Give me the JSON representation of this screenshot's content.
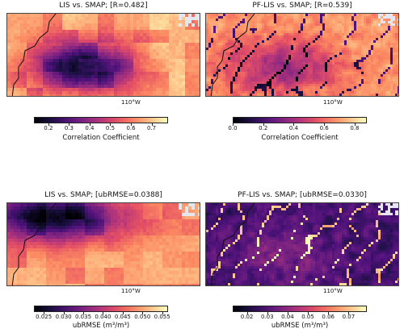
{
  "panels": [
    {
      "title": "LIS vs. SMAP; [R=0.482]",
      "lon_label": "110°W",
      "cbar_label": "Correlation Coefficient",
      "ticks": [
        "0.2",
        "0.3",
        "0.4",
        "0.5",
        "0.6",
        "0.7"
      ],
      "tick_values": [
        0.2,
        0.3,
        0.4,
        0.5,
        0.6,
        0.7
      ],
      "vmin": 0.13,
      "vmax": 0.78,
      "style": "coarse-corr"
    },
    {
      "title": "PF-LIS vs. SMAP; [R=0.539]",
      "lon_label": "110°W",
      "cbar_label": "Correlation Coefficient",
      "ticks": [
        "0.0",
        "0.2",
        "0.4",
        "0.6",
        "0.8"
      ],
      "tick_values": [
        0.0,
        0.2,
        0.4,
        0.6,
        0.8
      ],
      "vmin": 0.0,
      "vmax": 0.88,
      "style": "fine-corr"
    },
    {
      "title": "LIS vs. SMAP; [ubRMSE=0.0388]",
      "lon_label": "110°W",
      "cbar_label": "ubRMSE (m³/m³)",
      "ticks": [
        "0.025",
        "0.030",
        "0.035",
        "0.040",
        "0.045",
        "0.050",
        "0.055"
      ],
      "tick_values": [
        0.025,
        0.03,
        0.035,
        0.04,
        0.045,
        0.05,
        0.055
      ],
      "vmin": 0.0225,
      "vmax": 0.0565,
      "style": "coarse-rmse"
    },
    {
      "title": "PF-LIS vs. SMAP; [ubRMSE=0.0330]",
      "lon_label": "110°W",
      "cbar_label": "ubRMSE (m³/m³)",
      "ticks": [
        "0.02",
        "0.03",
        "0.04",
        "0.05",
        "0.06",
        "0.07"
      ],
      "tick_values": [
        0.02,
        0.03,
        0.04,
        0.05,
        0.06,
        0.07
      ],
      "vmin": 0.013,
      "vmax": 0.079,
      "style": "fine-rmse"
    }
  ],
  "colormap": "magma",
  "colors": {
    "border": "#111111",
    "missing": "#e6e6f0"
  }
}
